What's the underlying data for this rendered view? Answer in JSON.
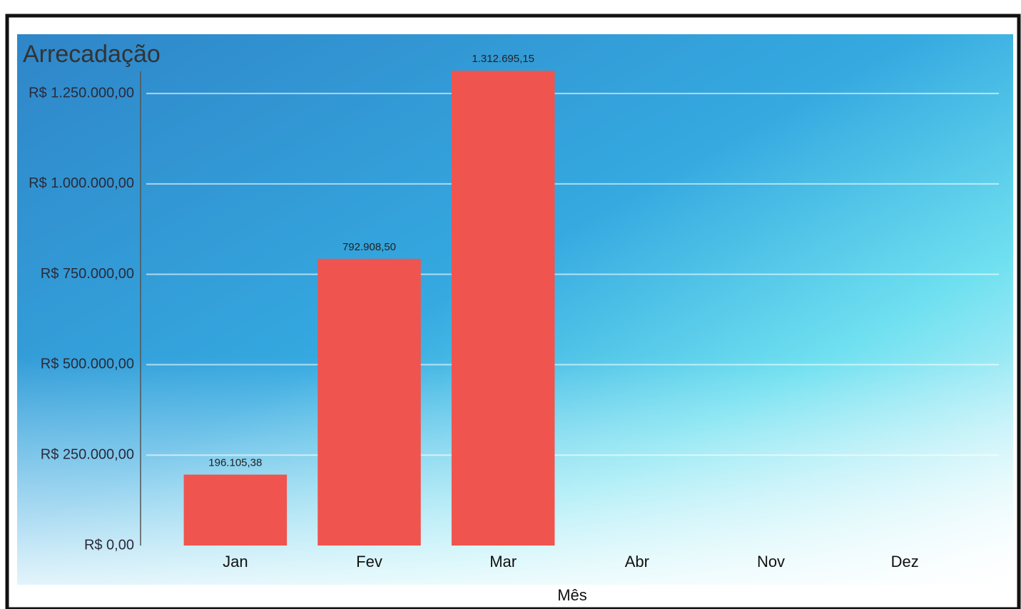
{
  "chart_data": {
    "type": "bar",
    "title": "Arrecadação",
    "x_label": "Mês",
    "categories": [
      "Jan",
      "Fev",
      "Mar",
      "Abr",
      "Nov",
      "Dez"
    ],
    "values": [
      196105.38,
      792908.5,
      1312695.15,
      null,
      null,
      null
    ],
    "value_labels": [
      "196.105,38",
      "792.908,50",
      "1.312.695,15",
      null,
      null,
      null
    ],
    "color": "#f0544e",
    "ylim": [
      0,
      1400000
    ],
    "yticks": [
      {
        "value": 0,
        "label": "R$ 0,00"
      },
      {
        "value": 250000,
        "label": "R$ 250.000,00"
      },
      {
        "value": 500000,
        "label": "R$ 500.000,00"
      },
      {
        "value": 750000,
        "label": "R$ 750.000,00"
      },
      {
        "value": 1000000,
        "label": "R$ 1.000.000,00"
      },
      {
        "value": 1250000,
        "label": "R$ 1.250.000,00"
      }
    ],
    "grid": true
  }
}
